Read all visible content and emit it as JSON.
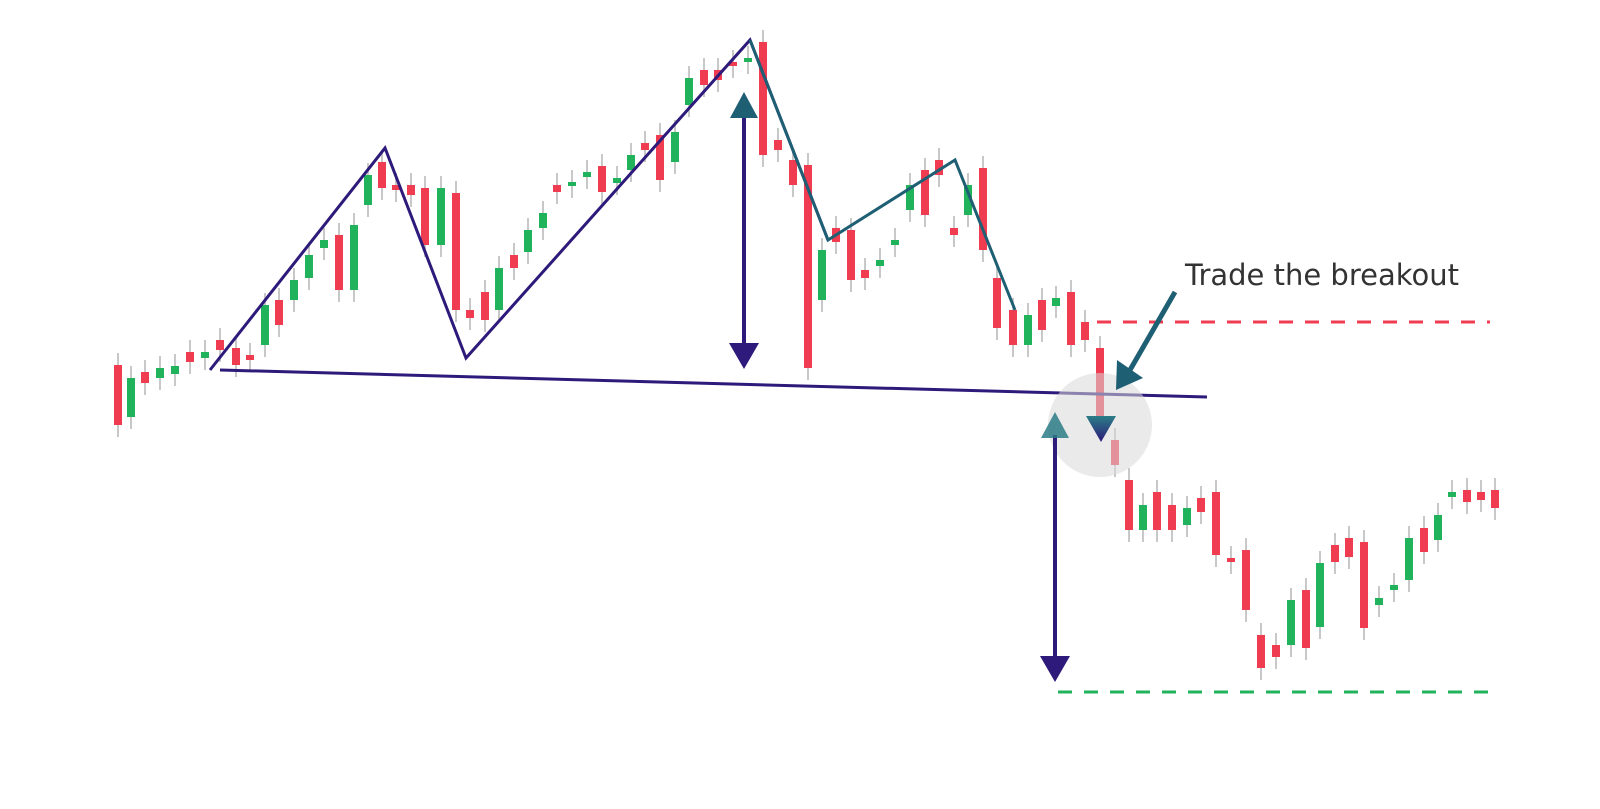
{
  "annotation": {
    "text": "Trade the breakout"
  }
}
